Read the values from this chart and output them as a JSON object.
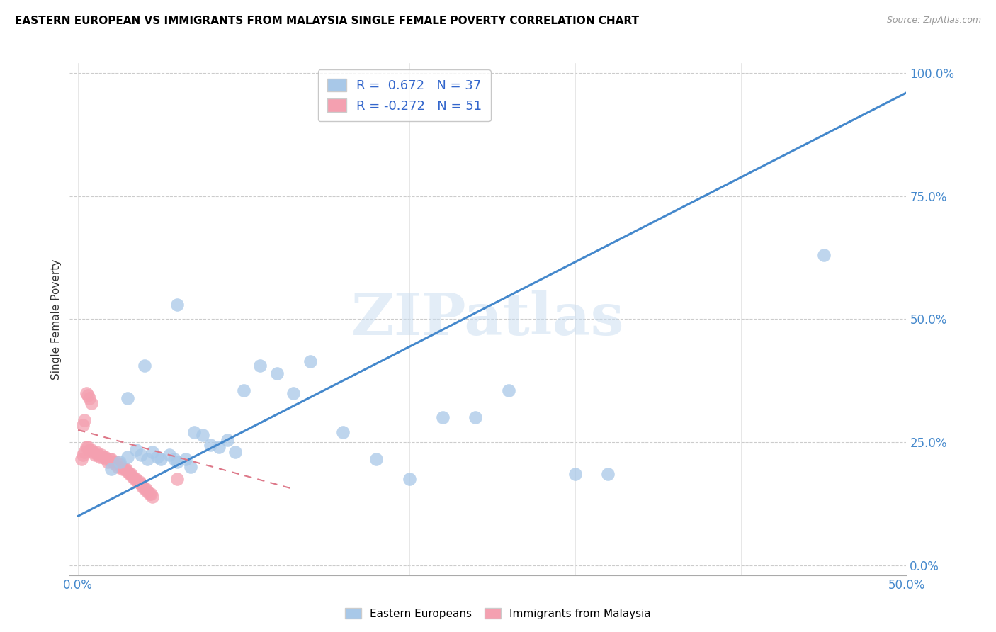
{
  "title": "EASTERN EUROPEAN VS IMMIGRANTS FROM MALAYSIA SINGLE FEMALE POVERTY CORRELATION CHART",
  "source": "Source: ZipAtlas.com",
  "ylabel": "Single Female Poverty",
  "xlim": [
    -0.005,
    0.5
  ],
  "ylim": [
    -0.02,
    1.02
  ],
  "ytick_labels": [
    "0.0%",
    "25.0%",
    "50.0%",
    "75.0%",
    "100.0%"
  ],
  "ytick_positions": [
    0.0,
    0.25,
    0.5,
    0.75,
    1.0
  ],
  "xtick_positions": [
    0.0,
    0.1,
    0.2,
    0.3,
    0.4,
    0.5
  ],
  "xtick_labels": [
    "0.0%",
    "",
    "",
    "",
    "",
    "50.0%"
  ],
  "legend_labels": [
    "Eastern Europeans",
    "Immigrants from Malaysia"
  ],
  "R_blue": 0.672,
  "N_blue": 37,
  "R_pink": -0.272,
  "N_pink": 51,
  "blue_color": "#A8C8E8",
  "pink_color": "#F4A0B0",
  "blue_line_color": "#4488CC",
  "pink_line_color": "#DD7788",
  "watermark_text": "ZIPatlas",
  "blue_line_x": [
    0.0,
    0.5
  ],
  "blue_line_y": [
    0.1,
    0.96
  ],
  "pink_line_x": [
    0.0,
    0.13
  ],
  "pink_line_y": [
    0.275,
    0.155
  ],
  "blue_scatter_x": [
    0.02,
    0.025,
    0.03,
    0.035,
    0.038,
    0.042,
    0.045,
    0.048,
    0.05,
    0.055,
    0.058,
    0.06,
    0.065,
    0.068,
    0.07,
    0.075,
    0.08,
    0.085,
    0.09,
    0.095,
    0.1,
    0.11,
    0.12,
    0.13,
    0.14,
    0.16,
    0.18,
    0.2,
    0.22,
    0.24,
    0.26,
    0.3,
    0.32,
    0.45,
    0.03,
    0.04,
    0.06
  ],
  "blue_scatter_y": [
    0.195,
    0.21,
    0.22,
    0.235,
    0.225,
    0.215,
    0.23,
    0.22,
    0.215,
    0.225,
    0.215,
    0.21,
    0.215,
    0.2,
    0.27,
    0.265,
    0.245,
    0.24,
    0.255,
    0.23,
    0.355,
    0.405,
    0.39,
    0.35,
    0.415,
    0.27,
    0.215,
    0.175,
    0.3,
    0.3,
    0.355,
    0.185,
    0.185,
    0.63,
    0.34,
    0.405,
    0.53
  ],
  "pink_scatter_x": [
    0.002,
    0.003,
    0.004,
    0.005,
    0.006,
    0.007,
    0.008,
    0.009,
    0.01,
    0.011,
    0.012,
    0.013,
    0.014,
    0.015,
    0.016,
    0.017,
    0.018,
    0.019,
    0.02,
    0.021,
    0.022,
    0.023,
    0.024,
    0.025,
    0.026,
    0.027,
    0.028,
    0.029,
    0.03,
    0.031,
    0.032,
    0.033,
    0.034,
    0.035,
    0.036,
    0.037,
    0.038,
    0.039,
    0.04,
    0.041,
    0.042,
    0.043,
    0.044,
    0.045,
    0.003,
    0.004,
    0.005,
    0.006,
    0.007,
    0.008,
    0.06
  ],
  "pink_scatter_y": [
    0.215,
    0.225,
    0.23,
    0.24,
    0.24,
    0.235,
    0.235,
    0.23,
    0.225,
    0.23,
    0.225,
    0.22,
    0.225,
    0.22,
    0.22,
    0.215,
    0.21,
    0.215,
    0.215,
    0.21,
    0.205,
    0.21,
    0.2,
    0.205,
    0.2,
    0.195,
    0.195,
    0.195,
    0.19,
    0.185,
    0.185,
    0.18,
    0.175,
    0.175,
    0.17,
    0.17,
    0.165,
    0.16,
    0.155,
    0.155,
    0.15,
    0.145,
    0.145,
    0.14,
    0.285,
    0.295,
    0.35,
    0.345,
    0.34,
    0.33,
    0.175
  ]
}
